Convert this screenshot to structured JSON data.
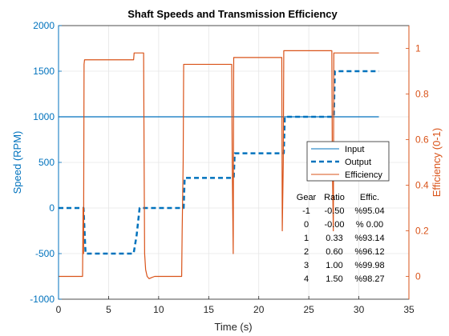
{
  "chart_data": {
    "type": "line",
    "title": "Shaft Speeds and Transmission Efficiency",
    "xlabel": "Time (s)",
    "ylabel_left": "Speed (RPM)",
    "ylabel_right": "Efficiency (0-1)",
    "xlim": [
      0,
      35
    ],
    "ylim_left": [
      -1000,
      2000
    ],
    "ylim_right": [
      -0.1,
      1.1
    ],
    "xticks": [
      "0",
      "5",
      "10",
      "15",
      "20",
      "25",
      "30",
      "35"
    ],
    "yticks_left": [
      "-1000",
      "-500",
      "0",
      "500",
      "1000",
      "1500",
      "2000"
    ],
    "yticks_right": [
      "0",
      "0.2",
      "0.4",
      "0.6",
      "0.8",
      "1"
    ],
    "grid": true,
    "legend_position": "center-right",
    "colors": {
      "input": "#0072BD",
      "output": "#0072BD",
      "efficiency": "#D95319",
      "right_axis": "#D95319",
      "left_axis": "#0072BD"
    },
    "series": [
      {
        "name": "Input",
        "axis": "left",
        "style": "solid",
        "x": [
          0,
          32
        ],
        "y": [
          1000,
          1000
        ]
      },
      {
        "name": "Output",
        "axis": "left",
        "style": "dashed",
        "x": [
          0,
          2.5,
          2.7,
          7.5,
          7.8,
          8.1,
          12.5,
          12.6,
          17.5,
          17.6,
          22.5,
          22.6,
          27.5,
          27.6,
          32
        ],
        "y": [
          0,
          0,
          -500,
          -500,
          -300,
          0,
          0,
          330,
          330,
          600,
          600,
          1000,
          1000,
          1500,
          1500
        ]
      },
      {
        "name": "Efficiency",
        "axis": "right",
        "style": "solid",
        "x": [
          0,
          2.4,
          2.45,
          2.5,
          2.55,
          2.6,
          7.5,
          7.55,
          8.5,
          8.55,
          8.6,
          8.7,
          8.85,
          9.05,
          9.3,
          9.6,
          10,
          12.3,
          12.35,
          12.45,
          12.5,
          17.3,
          17.35,
          17.45,
          17.5,
          22.3,
          22.35,
          22.45,
          22.5,
          27.3,
          27.35,
          27.45,
          27.5,
          32
        ],
        "y": [
          0,
          0,
          0.3,
          0.1,
          0.93,
          0.95,
          0.95,
          0.98,
          0.98,
          0.5,
          0.1,
          0.03,
          0.0,
          -0.01,
          -0.005,
          0,
          0,
          0,
          0.2,
          0.5,
          0.93,
          0.93,
          0.5,
          0.1,
          0.96,
          0.96,
          0.2,
          0.5,
          0.99,
          0.99,
          0.5,
          0.2,
          0.98,
          0.98
        ]
      }
    ]
  },
  "annotation": {
    "header": {
      "gear": "Gear",
      "ratio": "Ratio",
      "effic": "Effic."
    },
    "rows": [
      {
        "gear": "-1",
        "ratio": "-0.50",
        "effic": "%95.04"
      },
      {
        "gear": "0",
        "ratio": "-0.00",
        "effic": "% 0.00"
      },
      {
        "gear": "1",
        "ratio": "0.33",
        "effic": "%93.14"
      },
      {
        "gear": "2",
        "ratio": "0.60",
        "effic": "%96.12"
      },
      {
        "gear": "3",
        "ratio": "1.00",
        "effic": "%99.98"
      },
      {
        "gear": "4",
        "ratio": "1.50",
        "effic": "%98.27"
      }
    ]
  }
}
